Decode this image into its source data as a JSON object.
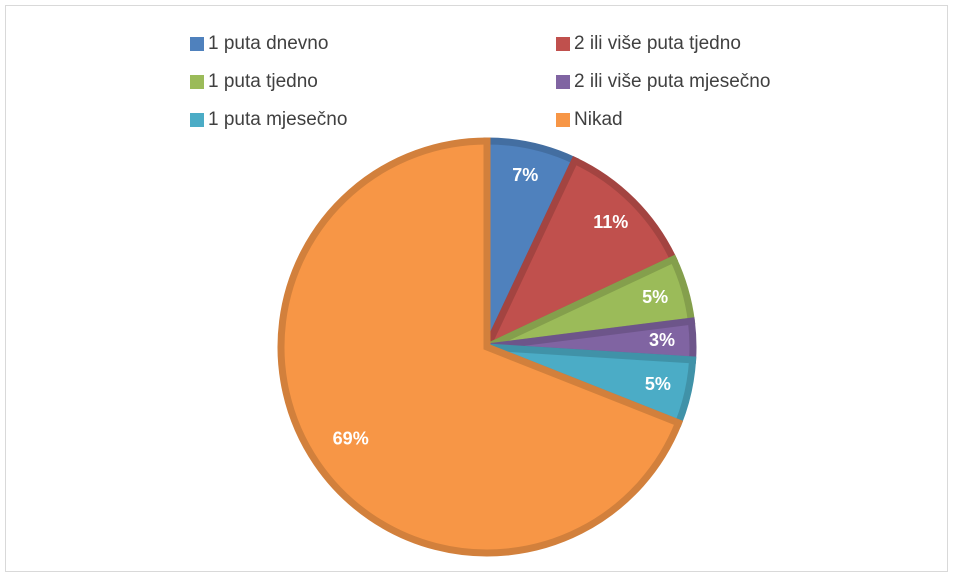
{
  "chart_data": {
    "type": "pie",
    "categories": [
      "1 puta dnevno",
      "2 ili više puta tjedno",
      "1 puta tjedno",
      "2 ili više puta mjesečno",
      "1 puta mjesečno",
      "Nikad"
    ],
    "values": [
      7,
      11,
      5,
      3,
      5,
      69
    ],
    "value_labels": [
      "7%",
      "11%",
      "5%",
      "3%",
      "5%",
      "69%"
    ],
    "colors": [
      "#4f81bd",
      "#c0504d",
      "#9bbb59",
      "#8064a2",
      "#4bacc6",
      "#f79646"
    ],
    "legend": "top"
  }
}
